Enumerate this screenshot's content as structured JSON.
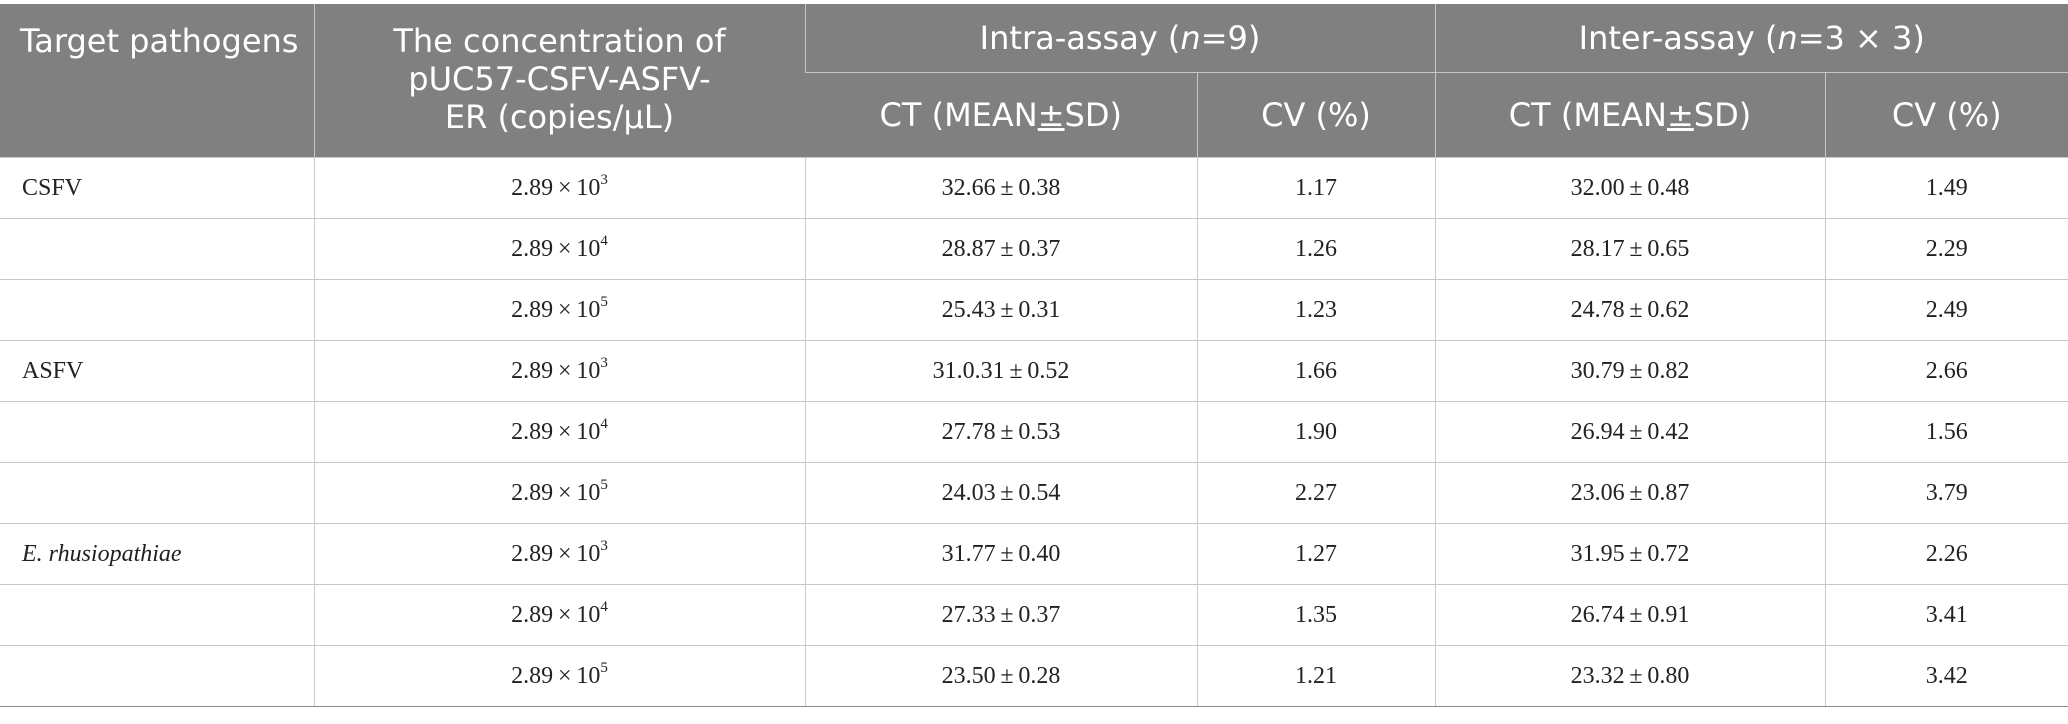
{
  "header": {
    "col1": "Target pathogens",
    "col2": "The concentration of pUC57-CSFV-ASFV-ER (copies/μL)",
    "intra_prefix": "Intra-assay (",
    "intra_n": "n",
    "intra_suffix": "=9)",
    "inter_prefix": "Inter-assay (",
    "inter_n": "n",
    "inter_suffix": "=3 × 3)",
    "ct_prefix": "CT (MEAN",
    "ct_pm": "±",
    "ct_suffix": "SD)",
    "cv": "CV (%)"
  },
  "rows": [
    {
      "pathogen": "CSFV",
      "conc_base": "2.89 × 10",
      "conc_exp": "3",
      "intra_ct": "32.66 ± 0.38",
      "intra_cv": "1.17",
      "inter_ct": "32.00 ± 0.48",
      "inter_cv": "1.49"
    },
    {
      "pathogen": "",
      "conc_base": "2.89 × 10",
      "conc_exp": "4",
      "intra_ct": "28.87 ± 0.37",
      "intra_cv": "1.26",
      "inter_ct": "28.17 ± 0.65",
      "inter_cv": "2.29"
    },
    {
      "pathogen": "",
      "conc_base": "2.89 × 10",
      "conc_exp": "5",
      "intra_ct": "25.43 ± 0.31",
      "intra_cv": "1.23",
      "inter_ct": "24.78 ± 0.62",
      "inter_cv": "2.49"
    },
    {
      "pathogen": "ASFV",
      "conc_base": "2.89 × 10",
      "conc_exp": "3",
      "intra_ct": "31.0.31 ± 0.52",
      "intra_cv": "1.66",
      "inter_ct": "30.79 ± 0.82",
      "inter_cv": "2.66"
    },
    {
      "pathogen": "",
      "conc_base": "2.89 × 10",
      "conc_exp": "4",
      "intra_ct": "27.78 ± 0.53",
      "intra_cv": "1.90",
      "inter_ct": "26.94 ± 0.42",
      "inter_cv": "1.56"
    },
    {
      "pathogen": "",
      "conc_base": "2.89 × 10",
      "conc_exp": "5",
      "intra_ct": "24.03 ± 0.54",
      "intra_cv": "2.27",
      "inter_ct": "23.06 ± 0.87",
      "inter_cv": "3.79"
    },
    {
      "pathogen": "E. rhusiopathiae",
      "italic": true,
      "conc_base": "2.89 × 10",
      "conc_exp": "3",
      "intra_ct": "31.77 ± 0.40",
      "intra_cv": "1.27",
      "inter_ct": "31.95 ± 0.72",
      "inter_cv": "2.26"
    },
    {
      "pathogen": "",
      "conc_base": "2.89 × 10",
      "conc_exp": "4",
      "intra_ct": "27.33 ± 0.37",
      "intra_cv": "1.35",
      "inter_ct": "26.74 ± 0.91",
      "inter_cv": "3.41"
    },
    {
      "pathogen": "",
      "conc_base": "2.89 × 10",
      "conc_exp": "5",
      "intra_ct": "23.50 ± 0.28",
      "intra_cv": "1.21",
      "inter_ct": "23.32 ± 0.80",
      "inter_cv": "3.42"
    }
  ],
  "colors": {
    "header_bg": "#808080",
    "header_text": "#ffffff",
    "body_text": "#222222"
  }
}
